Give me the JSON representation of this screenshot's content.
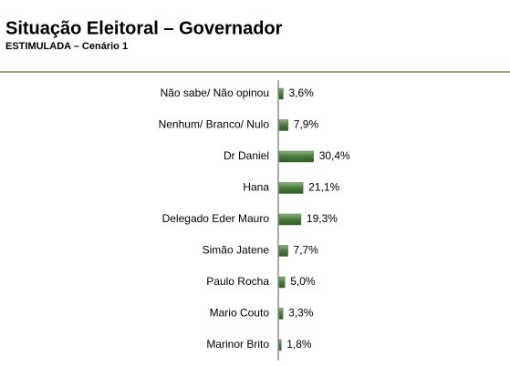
{
  "chart_data": {
    "type": "bar",
    "orientation": "horizontal",
    "title": "Situação Eleitoral – Governador",
    "subtitle": "ESTIMULADA – Cenário 1",
    "categories": [
      "Não sabe/ Não opinou",
      "Nenhum/ Branco/ Nulo",
      "Dr Daniel",
      "Hana",
      "Delegado Eder Mauro",
      "Simão Jatene",
      "Paulo Rocha",
      "Mario Couto",
      "Marinor Brito"
    ],
    "values": [
      3.6,
      7.9,
      30.4,
      21.1,
      19.3,
      7.7,
      5.0,
      3.3,
      1.8
    ],
    "value_labels": [
      "3,6%",
      "7,9%",
      "30,4%",
      "21,1%",
      "19,3%",
      "7,7%",
      "5,0%",
      "3,3%",
      "1,8%"
    ],
    "color": "#4a7a3c"
  }
}
